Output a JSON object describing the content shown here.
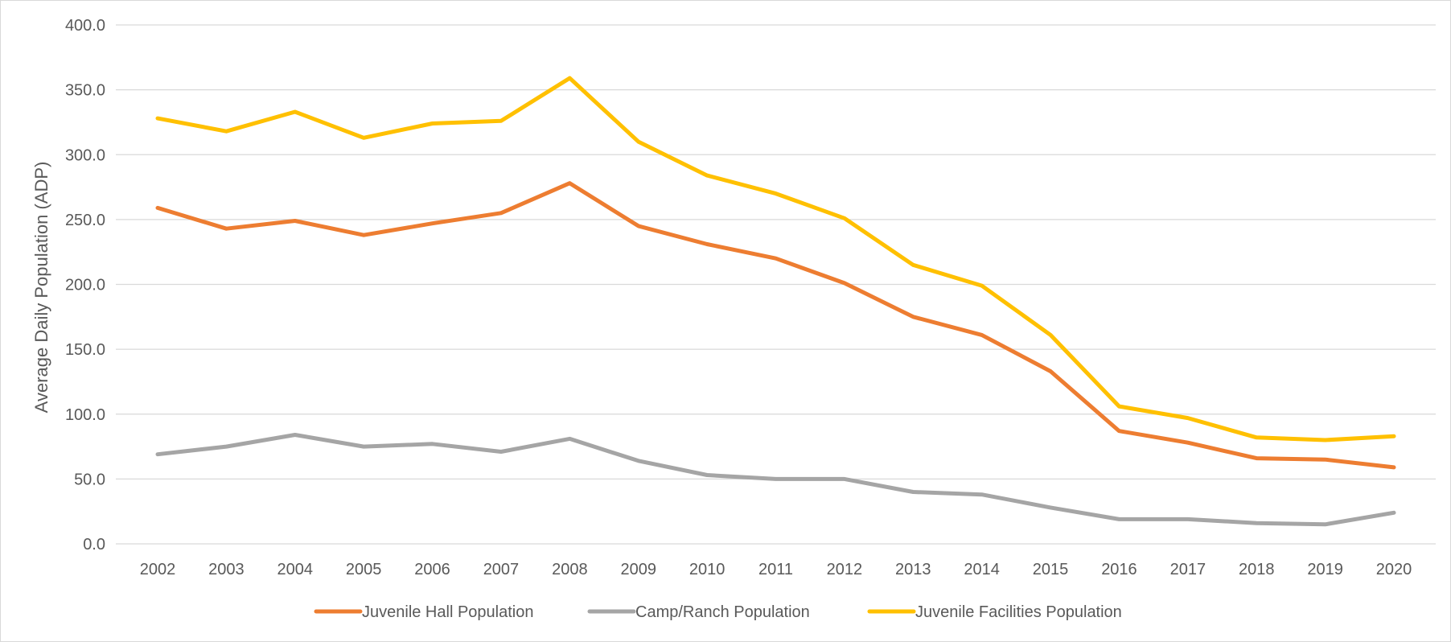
{
  "chart_data": {
    "type": "line",
    "title": "",
    "xlabel": "",
    "ylabel": "Average Daily Population (ADP)",
    "ylim": [
      0,
      400
    ],
    "yticks": [
      "0.0",
      "50.0",
      "100.0",
      "150.0",
      "200.0",
      "250.0",
      "300.0",
      "350.0",
      "400.0"
    ],
    "ytick_values": [
      0,
      50,
      100,
      150,
      200,
      250,
      300,
      350,
      400
    ],
    "grid": true,
    "legend_position": "bottom",
    "categories": [
      "2002",
      "2003",
      "2004",
      "2005",
      "2006",
      "2007",
      "2008",
      "2009",
      "2010",
      "2011",
      "2012",
      "2013",
      "2014",
      "2015",
      "2016",
      "2017",
      "2018",
      "2019",
      "2020"
    ],
    "series": [
      {
        "name": "Juvenile Hall Population",
        "color": "#ed7d31",
        "values": [
          259,
          243,
          249,
          238,
          247,
          255,
          278,
          245,
          231,
          220,
          201,
          175,
          161,
          133,
          87,
          78,
          66,
          65,
          59
        ]
      },
      {
        "name": "Camp/Ranch Population",
        "color": "#a5a5a5",
        "values": [
          69,
          75,
          84,
          75,
          77,
          71,
          81,
          64,
          53,
          50,
          50,
          40,
          38,
          28,
          19,
          19,
          16,
          15,
          24
        ]
      },
      {
        "name": "Juvenile Facilities Population",
        "color": "#ffc000",
        "values": [
          328,
          318,
          333,
          313,
          324,
          326,
          359,
          310,
          284,
          270,
          251,
          215,
          199,
          161,
          106,
          97,
          82,
          80,
          83
        ]
      }
    ]
  }
}
